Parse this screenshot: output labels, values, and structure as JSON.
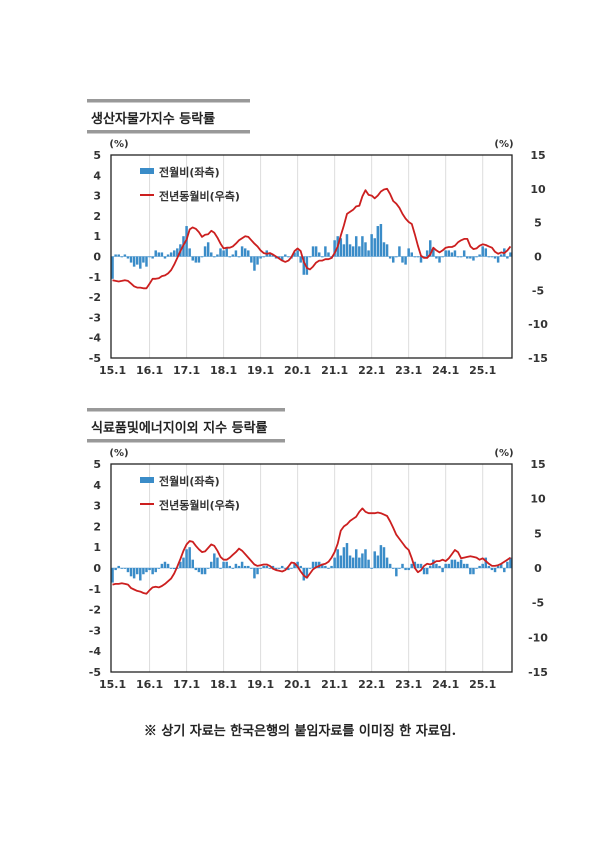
{
  "sections": [
    {
      "title": "생산자물가지수 등락률"
    },
    {
      "title": "식료품및에너지이외 지수 등락률"
    }
  ],
  "footnote": "※ 상기 자료는 한국은행의 붙임자료를  이미징 한 자료임.",
  "colors": {
    "bar": "#3a8cc8",
    "line": "#cc1f1f",
    "grid": "#dddddd"
  },
  "chart_data": [
    {
      "type": "bar+line",
      "left_unit": "(%)",
      "right_unit": "(%)",
      "x_tick_labels": [
        "15.1",
        "16.1",
        "17.1",
        "18.1",
        "19.1",
        "20.1",
        "21.1",
        "22.1",
        "23.1",
        "24.1",
        "25.1"
      ],
      "left_ticks": [
        "5",
        "4",
        "3",
        "2",
        "1",
        "0",
        "-1",
        "-2",
        "-3",
        "-4",
        "-5"
      ],
      "right_ticks": [
        "15",
        "10",
        "5",
        "0",
        "-5",
        "-10",
        "-15"
      ],
      "ylim_left": [
        -5,
        5
      ],
      "ylim_right": [
        -15,
        15
      ],
      "x_range": [
        "2015.01",
        "2025.10"
      ],
      "grid": "vertical at each January",
      "legend_position": "top-left",
      "series": [
        {
          "name": "전월비(좌측)",
          "type": "bar",
          "axis": "left",
          "values": [
            -1.1,
            0.1,
            0.1,
            0,
            0.1,
            -0.1,
            -0.3,
            -0.5,
            -0.4,
            -0.6,
            -0.3,
            -0.5,
            0,
            -0.1,
            0.3,
            0.2,
            0.2,
            -0.1,
            0.1,
            0.2,
            0.3,
            0.4,
            0.6,
            1.0,
            1.5,
            0.4,
            -0.2,
            -0.3,
            -0.3,
            0,
            0.5,
            0.7,
            0.2,
            0,
            0.1,
            0.4,
            0.3,
            0.4,
            0,
            0.1,
            0.3,
            0,
            0.5,
            0.4,
            0.3,
            -0.3,
            -0.7,
            -0.4,
            -0.1,
            0,
            0.3,
            0.2,
            0.1,
            -0.1,
            -0.1,
            -0.2,
            0.1,
            0,
            -0.1,
            0.2,
            0.3,
            -0.3,
            -0.9,
            -0.9,
            0,
            0.5,
            0.5,
            0.2,
            0,
            0.5,
            0.2,
            -0.1,
            0.8,
            1.0,
            0.9,
            0.6,
            1.1,
            0.6,
            0.5,
            1.0,
            0.5,
            1.0,
            0.7,
            0.3,
            1.1,
            0.9,
            1.5,
            1.6,
            0.7,
            0.6,
            -0.1,
            -0.3,
            0,
            0.5,
            -0.3,
            -0.4,
            0.4,
            0.2,
            0,
            0,
            -0.3,
            -0.1,
            0.3,
            0.8,
            0.4,
            -0.1,
            -0.3,
            0,
            0.3,
            0.3,
            0.2,
            0.3,
            0,
            0,
            0.3,
            -0.1,
            -0.1,
            -0.2,
            0,
            0.1,
            0.5,
            0.4,
            0,
            0,
            -0.1,
            -0.3,
            0.1,
            0.4,
            -0.1,
            0.2
          ]
        },
        {
          "name": "전년동월비(우측)",
          "type": "line",
          "axis": "right",
          "values": [
            -3.5,
            -3.6,
            -3.7,
            -3.6,
            -3.5,
            -3.6,
            -4.0,
            -4.4,
            -4.6,
            -4.6,
            -4.7,
            -4.7,
            -4.0,
            -3.3,
            -3.3,
            -3.2,
            -2.9,
            -2.8,
            -2.5,
            -2.0,
            -1.2,
            -0.2,
            0.8,
            1.7,
            2.5,
            4.0,
            4.3,
            4.1,
            3.6,
            2.9,
            3.2,
            3.3,
            3.8,
            3.5,
            2.8,
            1.9,
            1.2,
            1.3,
            1.3,
            1.5,
            1.9,
            2.4,
            2.7,
            3.0,
            2.9,
            2.4,
            1.9,
            1.5,
            0.9,
            0.5,
            0.4,
            0.5,
            0.3,
            0.0,
            -0.3,
            -0.6,
            -0.8,
            -0.6,
            -0.1,
            0.8,
            1.2,
            0.8,
            -0.8,
            -1.7,
            -1.9,
            -1.5,
            -0.9,
            -0.6,
            -0.6,
            -0.4,
            -0.4,
            -0.2,
            0.5,
            1.5,
            3.1,
            4.6,
            6.3,
            6.6,
            6.9,
            7.4,
            7.5,
            8.9,
            9.8,
            9.1,
            9.0,
            8.6,
            9.0,
            9.6,
            9.9,
            10.0,
            9.2,
            8.2,
            7.8,
            7.2,
            6.3,
            5.6,
            5.1,
            4.8,
            3.3,
            1.6,
            0.1,
            -0.2,
            -0.2,
            0.3,
            1.3,
            0.9,
            0.6,
            0.9,
            1.3,
            1.4,
            1.4,
            1.6,
            2.1,
            2.4,
            2.6,
            2.6,
            1.5,
            1.1,
            1.2,
            1.6,
            1.8,
            1.7,
            1.5,
            1.3,
            0.7,
            0.4,
            0.6,
            0.5,
            0.9,
            1.5
          ]
        }
      ]
    },
    {
      "type": "bar+line",
      "left_unit": "(%)",
      "right_unit": "(%)",
      "x_tick_labels": [
        "15.1",
        "16.1",
        "17.1",
        "18.1",
        "19.1",
        "20.1",
        "21.1",
        "22.1",
        "23.1",
        "24.1",
        "25.1"
      ],
      "left_ticks": [
        "5",
        "4",
        "3",
        "2",
        "1",
        "0",
        "-1",
        "-2",
        "-3",
        "-4",
        "-5"
      ],
      "right_ticks": [
        "15",
        "10",
        "5",
        "0",
        "-5",
        "-10",
        "-15"
      ],
      "ylim_left": [
        -5,
        5
      ],
      "ylim_right": [
        -15,
        15
      ],
      "x_range": [
        "2015.01",
        "2025.10"
      ],
      "grid": "vertical at each January",
      "legend_position": "top-left",
      "series": [
        {
          "name": "전월비(좌측)",
          "type": "bar",
          "axis": "left",
          "values": [
            -0.7,
            -0.1,
            0.1,
            0,
            0,
            -0.2,
            -0.4,
            -0.5,
            -0.3,
            -0.6,
            -0.3,
            -0.2,
            -0.1,
            -0.3,
            -0.2,
            0,
            0.2,
            0.3,
            0.2,
            0,
            -0.05,
            0,
            0.3,
            0.5,
            0.9,
            1.0,
            0.4,
            -0.1,
            -0.2,
            -0.3,
            -0.3,
            0,
            0.3,
            0.7,
            0.5,
            0,
            0.3,
            0.3,
            0.1,
            0,
            0.2,
            0.1,
            0.3,
            0.1,
            0.1,
            0,
            -0.5,
            -0.3,
            0,
            0.1,
            0.1,
            0,
            0.1,
            -0.1,
            0,
            0.1,
            0,
            -0.1,
            0,
            0.2,
            0.3,
            0.1,
            -0.6,
            -0.5,
            0,
            0.3,
            0.3,
            0.3,
            0.2,
            0.1,
            0,
            0.1,
            0.5,
            0.9,
            0.6,
            1.0,
            1.2,
            0.6,
            0.5,
            0.9,
            0.5,
            0.7,
            0.9,
            0.4,
            0,
            0.8,
            0.6,
            1.1,
            1.0,
            0.5,
            0.2,
            0,
            -0.4,
            0,
            0.2,
            -0.1,
            -0.1,
            0.2,
            0.3,
            0.2,
            0.2,
            -0.3,
            -0.3,
            0.1,
            0.4,
            0.2,
            0.1,
            -0.2,
            0.2,
            0.2,
            0.4,
            0.4,
            0.3,
            0.4,
            0.2,
            0.2,
            -0.3,
            -0.3,
            0,
            0.1,
            0.2,
            0.5,
            0.1,
            -0.1,
            -0.2,
            0.1,
            0.2,
            -0.2,
            0.3,
            0.5
          ]
        },
        {
          "name": "전년동월비(우측)",
          "type": "line",
          "axis": "right",
          "values": [
            -2.4,
            -2.3,
            -2.3,
            -2.2,
            -2.3,
            -2.4,
            -2.9,
            -3.1,
            -3.3,
            -3.4,
            -3.6,
            -3.7,
            -3.2,
            -2.8,
            -2.7,
            -2.8,
            -2.6,
            -2.3,
            -1.9,
            -1.5,
            -0.8,
            0.2,
            1.3,
            2.5,
            3.4,
            3.9,
            3.8,
            3.2,
            2.7,
            2.3,
            2.4,
            2.9,
            3.4,
            3.2,
            2.5,
            1.6,
            1.2,
            1.2,
            1.5,
            1.9,
            2.3,
            2.8,
            2.5,
            2.0,
            1.5,
            1.0,
            0.5,
            0.3,
            0.4,
            0.5,
            0.5,
            0.3,
            -0.1,
            -0.3,
            -0.4,
            -0.5,
            -0.3,
            0.2,
            0.8,
            0.7,
            0.2,
            -0.5,
            -1.1,
            -1.4,
            -0.8,
            -0.2,
            0.1,
            0.3,
            0.5,
            0.6,
            0.9,
            1.5,
            2.3,
            3.5,
            5.4,
            6.0,
            6.3,
            6.8,
            7.1,
            7.4,
            8.1,
            8.6,
            8.1,
            7.9,
            7.9,
            7.9,
            8.0,
            7.9,
            7.7,
            7.5,
            6.7,
            5.8,
            4.8,
            4.2,
            3.6,
            3.0,
            2.6,
            1.4,
            0.0,
            -0.6,
            -0.3,
            0.3,
            0.6,
            0.5,
            0.7,
            1.0,
            1.0,
            1.2,
            1.0,
            1.4,
            2.0,
            2.6,
            2.3,
            1.4,
            1.5,
            1.6,
            1.7,
            1.6,
            1.5,
            1.2,
            1.4,
            1.0,
            0.6,
            0.3,
            0.3,
            0.4,
            0.6,
            0.9,
            1.2,
            1.5
          ]
        }
      ]
    }
  ]
}
